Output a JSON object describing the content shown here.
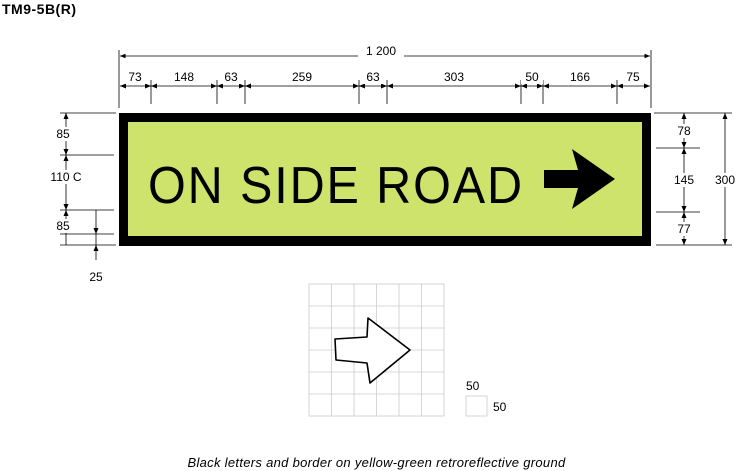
{
  "title": "TM9-5B(R)",
  "caption": "Black letters and border on yellow-green retroreflective ground",
  "sign": {
    "legend": "ON SIDE ROAD",
    "background_color": "#cde36b",
    "border_color": "#000000",
    "letter_color": "#000000",
    "arrow_icon": "right-arrow-icon"
  },
  "dimensions": {
    "overall_width": "1 200",
    "horizontal": [
      "73",
      "148",
      "63",
      "259",
      "63",
      "303",
      "50",
      "166",
      "75"
    ],
    "left": {
      "top": "85",
      "middle": "110 C",
      "bottom": "85",
      "border": "25"
    },
    "right": {
      "top": "78",
      "middle": "145",
      "bottom": "77",
      "overall_height": "300"
    }
  },
  "grid_detail": {
    "cell_width": "50",
    "cell_height": "50"
  }
}
